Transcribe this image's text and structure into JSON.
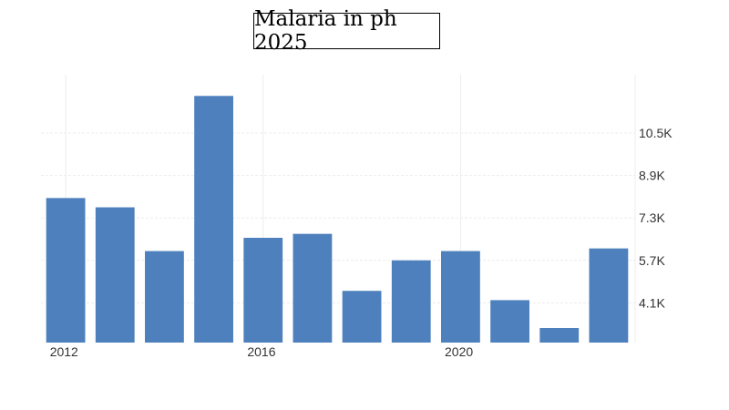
{
  "chart_data": {
    "type": "bar",
    "title": "Malaria in ph 2025",
    "xlabel": "",
    "ylabel": "",
    "x": [
      2012,
      2013,
      2014,
      2015,
      2016,
      2017,
      2018,
      2019,
      2020,
      2021,
      2022,
      2023
    ],
    "values": [
      8050,
      7700,
      6050,
      11900,
      6550,
      6700,
      4550,
      5700,
      6050,
      4200,
      3150,
      6150
    ],
    "x_ticks": [
      "2012",
      "2016",
      "2020"
    ],
    "y_ticks": [
      4100,
      5700,
      7300,
      8900,
      10500
    ],
    "y_tick_labels": [
      "4.1K",
      "5.7K",
      "7.3K",
      "8.9K",
      "10.5K"
    ],
    "ylim": [
      2600,
      12700
    ],
    "grid": true,
    "y_axis_side": "right",
    "bar_color": "#4d80bd"
  }
}
